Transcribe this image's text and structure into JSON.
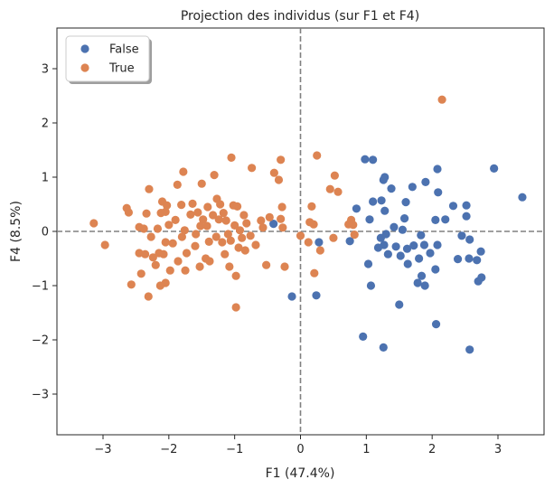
{
  "chart_data": {
    "type": "scatter",
    "title": "Projection des individus (sur F1 et F4)",
    "xlabel": "F1 (47.4%)",
    "ylabel": "F4 (8.5%)",
    "xlim": [
      -3.7,
      3.7
    ],
    "ylim": [
      -3.75,
      3.75
    ],
    "xticks": [
      -3,
      -2,
      -1,
      0,
      1,
      2,
      3
    ],
    "yticks": [
      -3,
      -2,
      -1,
      0,
      1,
      2,
      3
    ],
    "xtick_labels": [
      "−3",
      "−2",
      "−1",
      "0",
      "1",
      "2",
      "3"
    ],
    "ytick_labels": [
      "−3",
      "−2",
      "−1",
      "0",
      "1",
      "2",
      "3"
    ],
    "reference_lines": {
      "x": 0,
      "y": 0,
      "style": "dashed",
      "color": "#808080"
    },
    "legend": {
      "position": "top-left"
    },
    "series": [
      {
        "name": "False",
        "color": "#4c72b0",
        "points": [
          [
            3.37,
            0.63
          ],
          [
            2.94,
            1.16
          ],
          [
            2.74,
            -0.37
          ],
          [
            2.75,
            -0.85
          ],
          [
            2.7,
            -0.92
          ],
          [
            2.68,
            -0.53
          ],
          [
            2.57,
            -0.15
          ],
          [
            2.56,
            -0.5
          ],
          [
            2.52,
            0.28
          ],
          [
            2.52,
            0.48
          ],
          [
            2.57,
            -2.18
          ],
          [
            2.45,
            -0.08
          ],
          [
            2.39,
            -0.51
          ],
          [
            2.32,
            0.47
          ],
          [
            2.2,
            0.22
          ],
          [
            2.08,
            1.15
          ],
          [
            2.09,
            0.72
          ],
          [
            2.05,
            0.21
          ],
          [
            2.08,
            -0.25
          ],
          [
            2.05,
            -0.7
          ],
          [
            2.06,
            -1.71
          ],
          [
            1.97,
            -0.4
          ],
          [
            1.89,
            -1.0
          ],
          [
            1.84,
            -0.82
          ],
          [
            1.88,
            -0.25
          ],
          [
            1.83,
            -0.07
          ],
          [
            1.9,
            0.91
          ],
          [
            1.8,
            -0.5
          ],
          [
            1.78,
            -0.95
          ],
          [
            1.72,
            -0.26
          ],
          [
            1.7,
            0.82
          ],
          [
            1.63,
            -0.6
          ],
          [
            1.62,
            -0.32
          ],
          [
            1.58,
            0.24
          ],
          [
            1.6,
            0.54
          ],
          [
            1.55,
            0.03
          ],
          [
            1.52,
            -0.45
          ],
          [
            1.5,
            -1.35
          ],
          [
            1.45,
            -0.28
          ],
          [
            1.42,
            0.08
          ],
          [
            1.38,
            0.79
          ],
          [
            1.33,
            -0.42
          ],
          [
            1.3,
            -0.05
          ],
          [
            1.27,
            -0.25
          ],
          [
            1.23,
            0.57
          ],
          [
            1.22,
            -0.12
          ],
          [
            1.26,
            0.95
          ],
          [
            1.28,
            0.38
          ],
          [
            1.28,
            1.0
          ],
          [
            1.26,
            -2.14
          ],
          [
            1.18,
            -0.3
          ],
          [
            1.1,
            0.55
          ],
          [
            1.1,
            1.32
          ],
          [
            1.07,
            -1.0
          ],
          [
            1.03,
            -0.6
          ],
          [
            1.05,
            0.22
          ],
          [
            0.98,
            1.33
          ],
          [
            0.95,
            -1.94
          ],
          [
            0.85,
            0.42
          ],
          [
            0.75,
            -0.18
          ],
          [
            0.28,
            -0.2
          ],
          [
            0.24,
            -1.18
          ],
          [
            -0.13,
            -1.2
          ],
          [
            -0.41,
            0.14
          ]
        ]
      },
      {
        "name": "True",
        "color": "#dd8452",
        "points": [
          [
            2.15,
            2.43
          ],
          [
            -3.14,
            0.15
          ],
          [
            -2.97,
            -0.25
          ],
          [
            -2.64,
            0.43
          ],
          [
            -2.61,
            0.35
          ],
          [
            -2.57,
            -0.98
          ],
          [
            -2.45,
            0.08
          ],
          [
            -2.45,
            -0.4
          ],
          [
            -2.42,
            -0.78
          ],
          [
            -2.38,
            0.05
          ],
          [
            -2.36,
            -0.42
          ],
          [
            -2.34,
            0.33
          ],
          [
            -2.31,
            -1.2
          ],
          [
            -2.3,
            0.78
          ],
          [
            -2.27,
            -0.1
          ],
          [
            -2.24,
            -0.48
          ],
          [
            -2.2,
            -0.62
          ],
          [
            -2.17,
            0.05
          ],
          [
            -2.15,
            -0.4
          ],
          [
            -2.13,
            -1.0
          ],
          [
            -2.12,
            0.34
          ],
          [
            -2.1,
            0.55
          ],
          [
            -2.08,
            -0.42
          ],
          [
            -2.05,
            0.36
          ],
          [
            -2.05,
            -0.95
          ],
          [
            -2.05,
            -0.2
          ],
          [
            -2.03,
            0.48
          ],
          [
            -2.0,
            0.12
          ],
          [
            -1.98,
            -0.72
          ],
          [
            -1.94,
            -0.22
          ],
          [
            -1.9,
            0.21
          ],
          [
            -1.87,
            0.86
          ],
          [
            -1.86,
            -0.55
          ],
          [
            -1.81,
            0.49
          ],
          [
            -1.8,
            -0.1
          ],
          [
            -1.78,
            1.1
          ],
          [
            -1.76,
            0.02
          ],
          [
            -1.75,
            -0.72
          ],
          [
            -1.73,
            -0.4
          ],
          [
            -1.67,
            0.31
          ],
          [
            -1.64,
            0.51
          ],
          [
            -1.6,
            -0.27
          ],
          [
            -1.59,
            -0.05
          ],
          [
            -1.56,
            0.35
          ],
          [
            -1.53,
            -0.65
          ],
          [
            -1.52,
            0.1
          ],
          [
            -1.5,
            0.88
          ],
          [
            -1.48,
            0.22
          ],
          [
            -1.44,
            -0.5
          ],
          [
            -1.42,
            0.1
          ],
          [
            -1.41,
            0.45
          ],
          [
            -1.39,
            -0.19
          ],
          [
            -1.38,
            -0.55
          ],
          [
            -1.33,
            0.3
          ],
          [
            -1.31,
            1.04
          ],
          [
            -1.28,
            -0.1
          ],
          [
            -1.27,
            0.6
          ],
          [
            -1.24,
            0.22
          ],
          [
            -1.22,
            0.5
          ],
          [
            -1.19,
            -0.2
          ],
          [
            -1.17,
            0.34
          ],
          [
            -1.15,
            -0.42
          ],
          [
            -1.13,
            0.2
          ],
          [
            -1.1,
            -0.05
          ],
          [
            -1.08,
            -0.65
          ],
          [
            -1.06,
            -0.17
          ],
          [
            -1.05,
            1.36
          ],
          [
            -1.02,
            0.48
          ],
          [
            -1.0,
            0.11
          ],
          [
            -0.98,
            -0.82
          ],
          [
            -0.98,
            -1.4
          ],
          [
            -0.96,
            0.46
          ],
          [
            -0.94,
            -0.3
          ],
          [
            -0.92,
            0.02
          ],
          [
            -0.89,
            -0.12
          ],
          [
            -0.86,
            0.3
          ],
          [
            -0.84,
            -0.35
          ],
          [
            -0.82,
            0.15
          ],
          [
            -0.76,
            -0.08
          ],
          [
            -0.74,
            1.17
          ],
          [
            -0.68,
            -0.25
          ],
          [
            -0.6,
            0.2
          ],
          [
            -0.57,
            0.07
          ],
          [
            -0.52,
            -0.62
          ],
          [
            -0.47,
            0.26
          ],
          [
            -0.4,
            1.08
          ],
          [
            -0.33,
            0.95
          ],
          [
            -0.3,
            0.23
          ],
          [
            -0.28,
            0.45
          ],
          [
            -0.24,
            -0.65
          ],
          [
            -0.27,
            0.07
          ],
          [
            -0.3,
            1.32
          ],
          [
            0.0,
            -0.08
          ],
          [
            0.12,
            -0.2
          ],
          [
            0.14,
            0.17
          ],
          [
            0.17,
            0.46
          ],
          [
            0.2,
            0.13
          ],
          [
            0.21,
            -0.77
          ],
          [
            0.25,
            1.4
          ],
          [
            0.3,
            -0.35
          ],
          [
            0.45,
            0.78
          ],
          [
            0.5,
            -0.12
          ],
          [
            0.52,
            1.03
          ],
          [
            0.57,
            0.73
          ],
          [
            0.73,
            0.13
          ],
          [
            0.77,
            0.21
          ],
          [
            0.8,
            0.12
          ],
          [
            0.82,
            -0.06
          ]
        ]
      }
    ]
  }
}
